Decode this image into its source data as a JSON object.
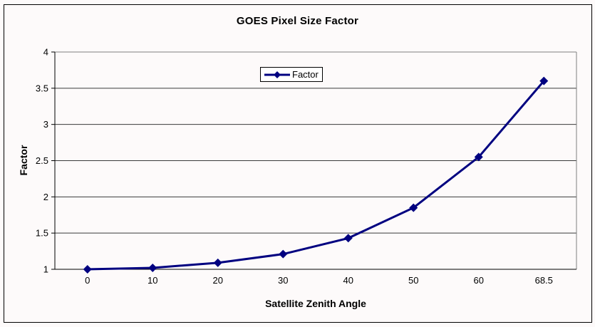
{
  "chart_data": {
    "type": "line",
    "title": "GOES Pixel Size Factor",
    "xlabel": "Satellite Zenith Angle",
    "ylabel": "Factor",
    "categories": [
      "0",
      "10",
      "20",
      "30",
      "40",
      "50",
      "60",
      "68.5"
    ],
    "series": [
      {
        "name": "Factor",
        "values": [
          1.0,
          1.02,
          1.09,
          1.21,
          1.43,
          1.85,
          2.55,
          3.6
        ]
      }
    ],
    "ylim": [
      1,
      4
    ],
    "ytick_labels": [
      "1",
      "1.5",
      "2",
      "2.5",
      "3",
      "3.5",
      "4"
    ],
    "ytick_values": [
      1,
      1.5,
      2,
      2.5,
      3,
      3.5,
      4
    ],
    "grid": true,
    "legend_position": "top-center",
    "colors": {
      "series": "#000080",
      "gridline": "#3a3a3a",
      "axis": "#000000",
      "plot_border": "#808080",
      "plot_background": "#fdfafa",
      "legend_background": "#ffffff",
      "text": "#000000"
    }
  }
}
